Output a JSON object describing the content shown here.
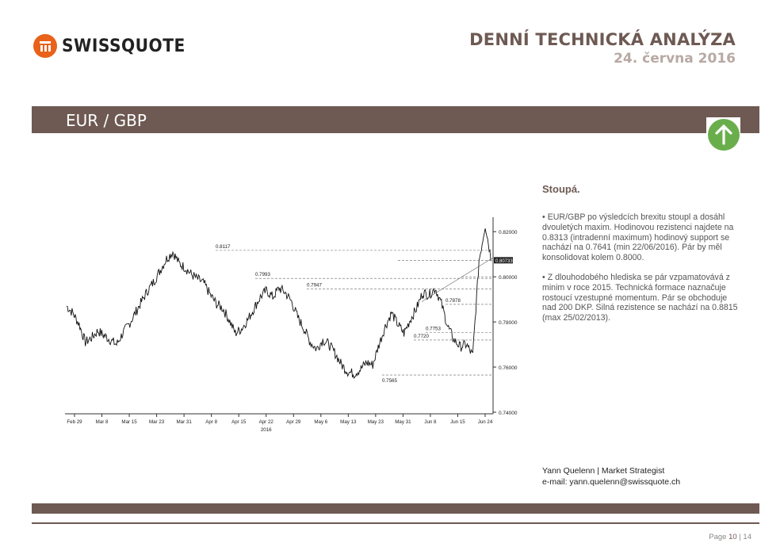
{
  "header": {
    "brand": "SWISSQUOTE",
    "title": "DENNÍ TECHNICKÁ ANALÝZA",
    "date": "24. června 2016"
  },
  "banner": {
    "pair": "EUR / GBP",
    "trend_icon": "up-arrow-icon",
    "trend_color": "#6aae4c"
  },
  "sentiment": "Stoupá.",
  "bullets": [
    "EUR/GBP po výsledcích brexitu stoupl a dosáhl dvouletých maxim. Hodinovou rezistenci najdete na 0.8313 (intradenní maximum) hodinový support se nachází na  0.7641 (min 22/06/2016). Pár by měl konsolidovat kolem 0.8000.",
    "Z dlouhodobého hlediska se pár vzpamatovává z  minim v roce 2015. Technická formace naznačuje rostoucí vzestupné momentum. Pár se obchoduje nad 200 DKP. Silná rezistence se nachází na 0.8815 (max 25/02/2013)."
  ],
  "chart_data": {
    "type": "line",
    "x_ticks": [
      "Feb 29",
      "Mar 8",
      "Mar 15",
      "Mar 23",
      "Mar 31",
      "Apr 8",
      "Apr 15",
      "Apr 22",
      "Apr 29",
      "May 6",
      "May 13",
      "May 23",
      "May 31",
      "Jun 8",
      "Jun 15",
      "Jun 24"
    ],
    "x_sublabel": "2016",
    "y_ticks": [
      "0.82000",
      "0.80000",
      "0.78000",
      "0.76000",
      "0.74000"
    ],
    "ylim": [
      0.74,
      0.825
    ],
    "current_price_label": "0.80733",
    "annotations": [
      "0.8117",
      "0.7993",
      "0.7947",
      "0.7878",
      "0.7753",
      "0.7720",
      "0.7565"
    ],
    "series": [
      {
        "values": [
          0.787,
          0.784,
          0.779,
          0.771,
          0.773,
          0.776,
          0.774,
          0.772,
          0.77,
          0.775,
          0.779,
          0.784,
          0.789,
          0.794,
          0.798,
          0.803,
          0.808,
          0.811,
          0.806,
          0.804,
          0.801,
          0.799,
          0.797,
          0.792,
          0.788,
          0.786,
          0.781,
          0.775,
          0.777,
          0.781,
          0.786,
          0.791,
          0.794,
          0.791,
          0.795,
          0.793,
          0.789,
          0.782,
          0.777,
          0.771,
          0.768,
          0.772,
          0.77,
          0.766,
          0.761,
          0.758,
          0.757,
          0.759,
          0.762,
          0.761,
          0.77,
          0.778,
          0.784,
          0.779,
          0.775,
          0.781,
          0.786,
          0.793,
          0.792,
          0.795,
          0.788,
          0.778,
          0.772,
          0.769,
          0.77,
          0.765,
          0.807,
          0.823,
          0.807
        ]
      }
    ]
  },
  "author": {
    "line1": "Yann Quelenn | Market Strategist",
    "line2": "e-mail: yann.quelenn@swissquote.ch"
  },
  "footer": {
    "page_label": "Page",
    "page": "10",
    "sep": "|",
    "total": "14"
  }
}
